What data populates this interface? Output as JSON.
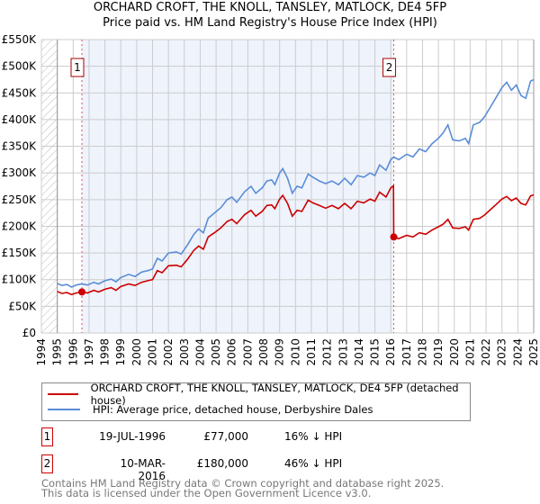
{
  "chart_data": {
    "type": "line",
    "title": "ORCHARD CROFT, THE KNOLL, TANSLEY, MATLOCK, DE4 5FP",
    "subtitle": "Price paid vs. HM Land Registry's House Price Index (HPI)",
    "xlim": [
      1994,
      2025
    ],
    "ylim": [
      0,
      550000
    ],
    "x_ticks": [
      "1994",
      "1995",
      "1996",
      "1997",
      "1998",
      "1999",
      "2000",
      "2001",
      "2002",
      "2003",
      "2004",
      "2005",
      "2006",
      "2007",
      "2008",
      "2009",
      "2010",
      "2011",
      "2012",
      "2013",
      "2014",
      "2015",
      "2016",
      "2017",
      "2018",
      "2019",
      "2020",
      "2021",
      "2022",
      "2023",
      "2024",
      "2025"
    ],
    "y_ticks": [
      {
        "v": 0,
        "label": "£0"
      },
      {
        "v": 50000,
        "label": "£50K"
      },
      {
        "v": 100000,
        "label": "£100K"
      },
      {
        "v": 150000,
        "label": "£150K"
      },
      {
        "v": 200000,
        "label": "£200K"
      },
      {
        "v": 250000,
        "label": "£250K"
      },
      {
        "v": 300000,
        "label": "£300K"
      },
      {
        "v": 350000,
        "label": "£350K"
      },
      {
        "v": 400000,
        "label": "£400K"
      },
      {
        "v": 450000,
        "label": "£450K"
      },
      {
        "v": 500000,
        "label": "£500K"
      },
      {
        "v": 550000,
        "label": "£550K"
      }
    ],
    "grid": true,
    "shaded_range": [
      1996.55,
      2016.19
    ],
    "hatched_range": [
      1994,
      1995
    ],
    "series": [
      {
        "name": "ORCHARD CROFT, THE KNOLL, TANSLEY, MATLOCK, DE4 5FP (detached house)",
        "color": "#cc0000",
        "x": [
          1995.0,
          1995.3,
          1995.6,
          1995.9,
          1996.2,
          1996.55,
          1996.9,
          1997.3,
          1997.6,
          1998.0,
          1998.4,
          1998.7,
          1999.0,
          1999.5,
          1999.9,
          2000.3,
          2000.7,
          2001.0,
          2001.3,
          2001.6,
          2002.0,
          2002.5,
          2002.8,
          2003.2,
          2003.6,
          2003.9,
          2004.2,
          2004.5,
          2004.9,
          2005.3,
          2005.7,
          2006.0,
          2006.3,
          2006.8,
          2007.2,
          2007.5,
          2007.9,
          2008.2,
          2008.5,
          2008.7,
          2009.0,
          2009.2,
          2009.5,
          2009.8,
          2010.1,
          2010.4,
          2010.8,
          2011.1,
          2011.5,
          2011.9,
          2012.3,
          2012.7,
          2013.1,
          2013.5,
          2013.9,
          2014.3,
          2014.7,
          2015.0,
          2015.3,
          2015.7,
          2016.0,
          2016.17,
          2016.19,
          2016.5,
          2017.0,
          2017.4,
          2017.8,
          2018.2,
          2018.6,
          2019.0,
          2019.3,
          2019.6,
          2019.9,
          2020.3,
          2020.7,
          2020.9,
          2021.2,
          2021.6,
          2021.9,
          2022.3,
          2022.6,
          2023.0,
          2023.3,
          2023.6,
          2023.9,
          2024.2,
          2024.5,
          2024.8,
          2025.0
        ],
        "y": [
          78000,
          74000,
          76000,
          72000,
          75000,
          77000,
          75000,
          80000,
          77000,
          82000,
          85000,
          80000,
          87000,
          92000,
          89000,
          95000,
          98000,
          100000,
          117000,
          113000,
          126000,
          127000,
          124000,
          138000,
          155000,
          163000,
          157000,
          180000,
          188000,
          197000,
          209000,
          213000,
          205000,
          222000,
          230000,
          219000,
          228000,
          239000,
          240000,
          233000,
          251000,
          258000,
          243000,
          219000,
          230000,
          228000,
          249000,
          244000,
          239000,
          234000,
          239000,
          233000,
          243000,
          233000,
          247000,
          244000,
          251000,
          247000,
          264000,
          255000,
          272000,
          276000,
          180000,
          177000,
          183000,
          180000,
          188000,
          185000,
          193000,
          199000,
          204000,
          213000,
          197000,
          196000,
          199000,
          193000,
          213000,
          215000,
          221000,
          232000,
          240000,
          251000,
          256000,
          248000,
          253000,
          243000,
          240000,
          257000,
          259000
        ]
      },
      {
        "name": "HPI: Average price, detached house, Derbyshire Dales",
        "color": "#5b8dd6",
        "x": [
          1995.0,
          1995.3,
          1995.6,
          1995.9,
          1996.2,
          1996.55,
          1996.9,
          1997.3,
          1997.6,
          1998.0,
          1998.4,
          1998.7,
          1999.0,
          1999.5,
          1999.9,
          2000.3,
          2000.7,
          2001.0,
          2001.3,
          2001.6,
          2002.0,
          2002.5,
          2002.8,
          2003.2,
          2003.6,
          2003.9,
          2004.2,
          2004.5,
          2004.9,
          2005.3,
          2005.7,
          2006.0,
          2006.3,
          2006.8,
          2007.2,
          2007.5,
          2007.9,
          2008.2,
          2008.5,
          2008.7,
          2009.0,
          2009.2,
          2009.5,
          2009.8,
          2010.1,
          2010.4,
          2010.8,
          2011.1,
          2011.5,
          2011.9,
          2012.3,
          2012.7,
          2013.1,
          2013.5,
          2013.9,
          2014.3,
          2014.7,
          2015.0,
          2015.3,
          2015.7,
          2016.0,
          2016.19,
          2016.5,
          2017.0,
          2017.4,
          2017.8,
          2018.2,
          2018.6,
          2019.0,
          2019.3,
          2019.6,
          2019.9,
          2020.3,
          2020.7,
          2020.9,
          2021.2,
          2021.6,
          2021.9,
          2022.3,
          2022.6,
          2023.0,
          2023.3,
          2023.6,
          2023.9,
          2024.2,
          2024.5,
          2024.8,
          2025.0
        ],
        "y": [
          93000,
          89000,
          91000,
          86000,
          90000,
          92000,
          90000,
          95000,
          92000,
          98000,
          101000,
          96000,
          104000,
          110000,
          106000,
          114000,
          117000,
          120000,
          140000,
          135000,
          150000,
          152000,
          148000,
          165000,
          185000,
          195000,
          188000,
          215000,
          225000,
          235000,
          250000,
          255000,
          245000,
          265000,
          275000,
          262000,
          272000,
          285000,
          287000,
          278000,
          300000,
          308000,
          290000,
          262000,
          275000,
          272000,
          298000,
          292000,
          285000,
          280000,
          285000,
          278000,
          290000,
          278000,
          295000,
          292000,
          300000,
          295000,
          315000,
          305000,
          325000,
          330000,
          325000,
          335000,
          330000,
          345000,
          340000,
          355000,
          365000,
          375000,
          390000,
          362000,
          360000,
          365000,
          355000,
          390000,
          395000,
          405000,
          425000,
          440000,
          460000,
          470000,
          455000,
          465000,
          445000,
          440000,
          472000,
          475000
        ]
      }
    ],
    "sales": [
      {
        "num": "1",
        "x": 1996.55,
        "y": 77000,
        "date": "19-JUL-1996",
        "price": "£77,000",
        "hpi": "16% ↓ HPI"
      },
      {
        "num": "2",
        "x": 2016.19,
        "y": 180000,
        "date": "10-MAR-2016",
        "price": "£180,000",
        "hpi": "46% ↓ HPI"
      }
    ]
  },
  "footer": {
    "line1": "Contains HM Land Registry data © Crown copyright and database right 2025.",
    "line2": "This data is licensed under the Open Government Licence v3.0."
  }
}
